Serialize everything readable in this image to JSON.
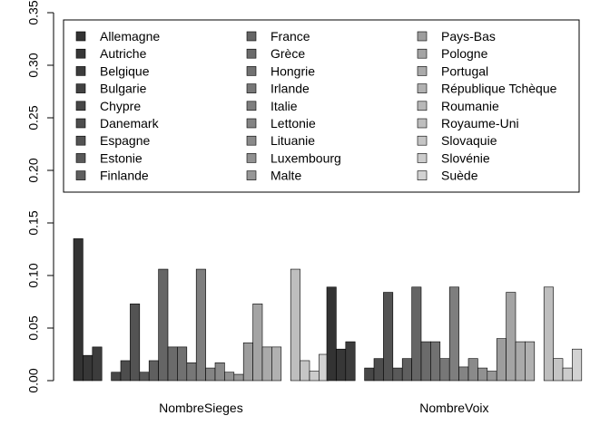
{
  "chart_data": {
    "type": "bar",
    "categories": [
      "NombreSieges",
      "NombreVoix"
    ],
    "ylim": [
      0,
      0.35
    ],
    "yticks": [
      "0.00",
      "0.05",
      "0.10",
      "0.15",
      "0.20",
      "0.25",
      "0.30",
      "0.35"
    ],
    "grid": false,
    "legend": "top",
    "series": [
      {
        "name": "Allemagne",
        "color": "#333333",
        "values": [
          0.135,
          0.089
        ]
      },
      {
        "name": "Autriche",
        "color": "#373737",
        "values": [
          0.024,
          0.03
        ]
      },
      {
        "name": "Belgique",
        "color": "#3c3c3c",
        "values": [
          0.032,
          0.037
        ]
      },
      {
        "name": "Bulgarie",
        "color": "#424242",
        "values": [
          0.0,
          0.0
        ]
      },
      {
        "name": "Chypre",
        "color": "#474747",
        "values": [
          0.008,
          0.012
        ]
      },
      {
        "name": "Danemark",
        "color": "#4d4d4d",
        "values": [
          0.019,
          0.021
        ]
      },
      {
        "name": "Espagne",
        "color": "#535353",
        "values": [
          0.073,
          0.084
        ]
      },
      {
        "name": "Estonie",
        "color": "#595959",
        "values": [
          0.008,
          0.012
        ]
      },
      {
        "name": "Finlande",
        "color": "#5f5f5f",
        "values": [
          0.019,
          0.021
        ]
      },
      {
        "name": "France",
        "color": "#656565",
        "values": [
          0.106,
          0.089
        ]
      },
      {
        "name": "Grèce",
        "color": "#6b6b6b",
        "values": [
          0.032,
          0.037
        ]
      },
      {
        "name": "Hongrie",
        "color": "#717171",
        "values": [
          0.032,
          0.037
        ]
      },
      {
        "name": "Irlande",
        "color": "#777777",
        "values": [
          0.017,
          0.021
        ]
      },
      {
        "name": "Italie",
        "color": "#7e7e7e",
        "values": [
          0.106,
          0.089
        ]
      },
      {
        "name": "Lettonie",
        "color": "#848484",
        "values": [
          0.012,
          0.013
        ]
      },
      {
        "name": "Lituanie",
        "color": "#8a8a8a",
        "values": [
          0.017,
          0.021
        ]
      },
      {
        "name": "Luxembourg",
        "color": "#919191",
        "values": [
          0.008,
          0.012
        ]
      },
      {
        "name": "Malte",
        "color": "#979797",
        "values": [
          0.006,
          0.009
        ]
      },
      {
        "name": "Pays-Bas",
        "color": "#9d9d9d",
        "values": [
          0.036,
          0.04
        ]
      },
      {
        "name": "Pologne",
        "color": "#a4a4a4",
        "values": [
          0.073,
          0.084
        ]
      },
      {
        "name": "Portugal",
        "color": "#aaaaaa",
        "values": [
          0.032,
          0.037
        ]
      },
      {
        "name": "République Tchèque",
        "color": "#b1b1b1",
        "values": [
          0.032,
          0.037
        ]
      },
      {
        "name": "Roumanie",
        "color": "#b8b8b8",
        "values": [
          0.0,
          0.0
        ]
      },
      {
        "name": "Royaume-Uni",
        "color": "#bebebe",
        "values": [
          0.106,
          0.089
        ]
      },
      {
        "name": "Slovaquie",
        "color": "#c5c5c5",
        "values": [
          0.019,
          0.021
        ]
      },
      {
        "name": "Slovénie",
        "color": "#cccccc",
        "values": [
          0.009,
          0.012
        ]
      },
      {
        "name": "Suède",
        "color": "#d2d2d2",
        "values": [
          0.025,
          0.03
        ]
      }
    ]
  }
}
